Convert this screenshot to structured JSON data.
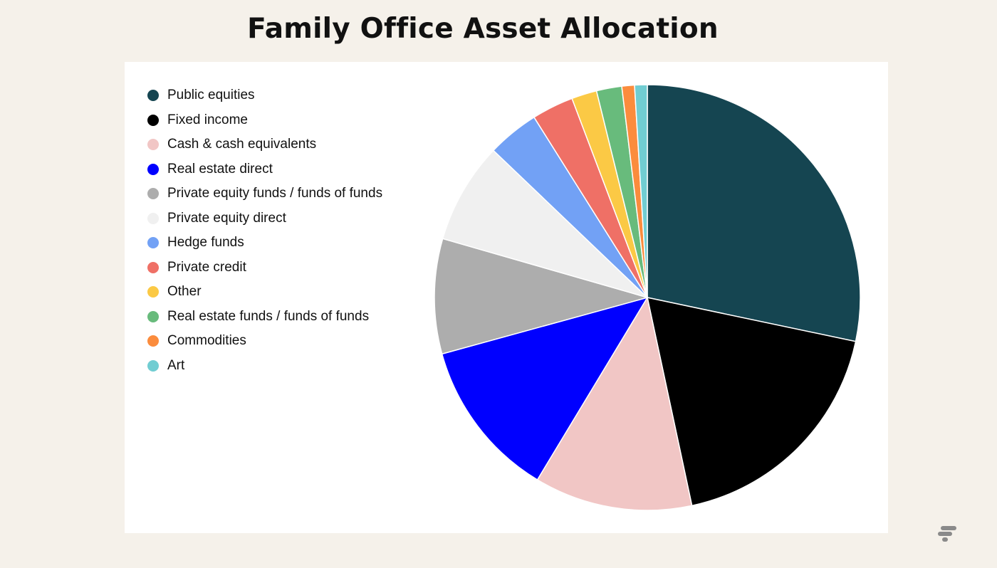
{
  "chart_data": {
    "type": "pie",
    "title": "Family Office Asset Allocation",
    "legend_position": "left",
    "slices": [
      {
        "label": "Public equities",
        "value": 29.5,
        "color": "#154551"
      },
      {
        "label": "Fixed income",
        "value": 19.1,
        "color": "#000000"
      },
      {
        "label": "Cash & cash equivalents",
        "value": 12.5,
        "color": "#f1c6c5"
      },
      {
        "label": "Real estate direct",
        "value": 12.6,
        "color": "#0000ff"
      },
      {
        "label": "Private equity funds / funds of funds",
        "value": 9.1,
        "color": "#adadad"
      },
      {
        "label": "Private equity direct",
        "value": 8.0,
        "color": "#f0f0f0"
      },
      {
        "label": "Hedge funds",
        "value": 4.1,
        "color": "#72a1f5"
      },
      {
        "label": "Private credit",
        "value": 3.3,
        "color": "#ef7066"
      },
      {
        "label": "Other",
        "value": 2.0,
        "color": "#fbc945"
      },
      {
        "label": "Real estate funds / funds of funds",
        "value": 2.0,
        "color": "#68bb7c"
      },
      {
        "label": "Commodities",
        "value": 1.0,
        "color": "#fb8c3d"
      },
      {
        "label": "Art",
        "value": 1.0,
        "color": "#71cdd2"
      }
    ]
  },
  "logo": {
    "icon": "brand-logo-icon",
    "color": "#8a8a8a"
  }
}
